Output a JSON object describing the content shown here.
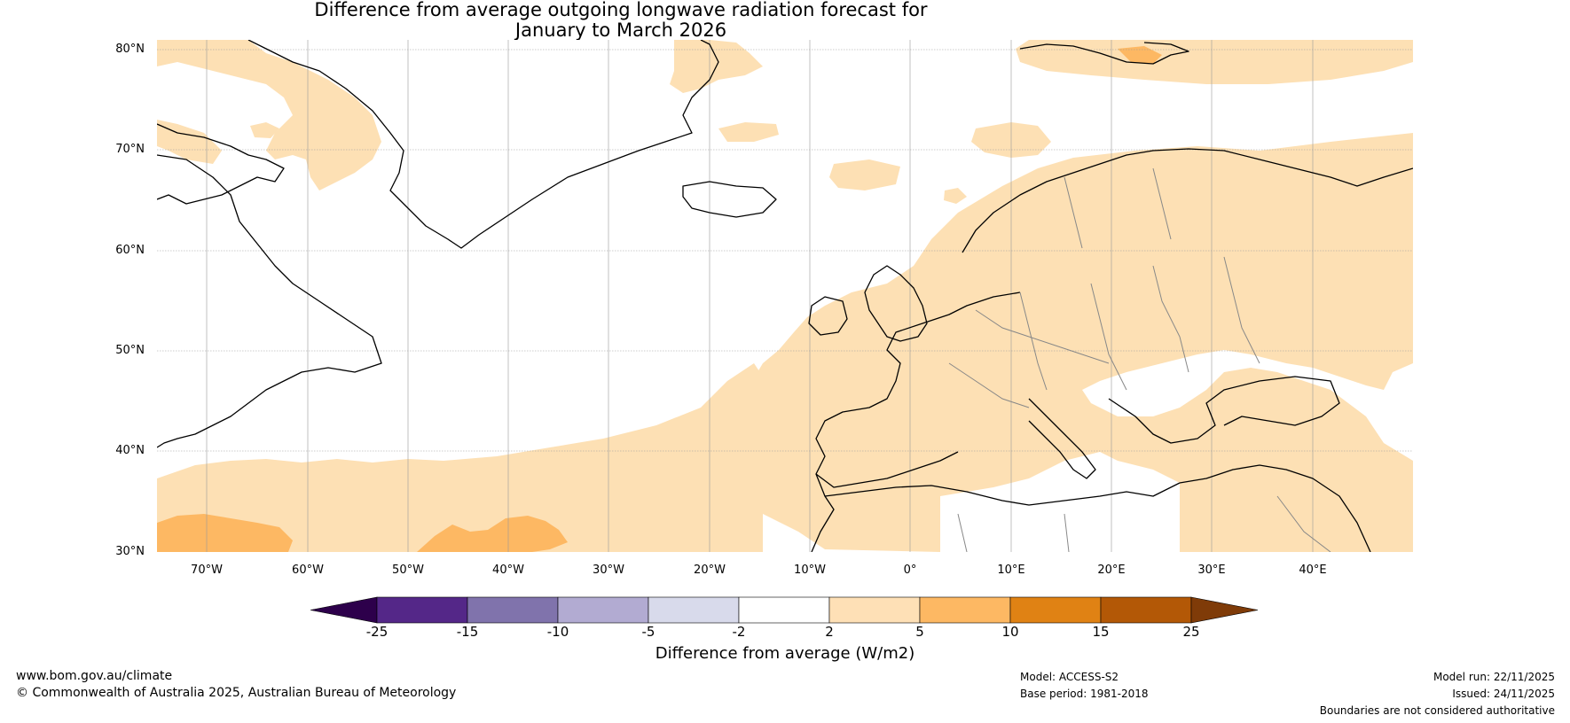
{
  "title": {
    "line1": "Difference from average outgoing longwave radiation forecast for",
    "line2": "January to March 2026"
  },
  "map": {
    "lat_labels": [
      "80°N",
      "70°N",
      "60°N",
      "50°N",
      "40°N",
      "30°N"
    ],
    "lon_labels": [
      "70°W",
      "60°W",
      "50°W",
      "40°W",
      "30°W",
      "20°W",
      "10°W",
      "0°",
      "10°E",
      "20°E",
      "30°E",
      "40°E"
    ],
    "region_extent": {
      "lon_min": -75,
      "lon_max": 50,
      "lat_min": 30,
      "lat_max": 81
    },
    "colors": {
      "ocean": "#ffffff",
      "anomaly_2_5": "#fde0b4",
      "anomaly_5_10": "#fdb863",
      "coastline": "#000000",
      "border": "#888888",
      "gridline": "#999999"
    }
  },
  "colorbar": {
    "ticks": [
      "-25",
      "-15",
      "-10",
      "-5",
      "-2",
      "2",
      "5",
      "10",
      "15",
      "25"
    ],
    "colors": [
      "#2d004b",
      "#542788",
      "#8073ac",
      "#b2abd2",
      "#d8daeb",
      "#ffffff",
      "#fee0b6",
      "#fdb863",
      "#e08214",
      "#b35806",
      "#7f3b08"
    ],
    "label": "Difference from average (W/m2)"
  },
  "footer": {
    "website": "www.bom.gov.au/climate",
    "copyright": "© Commonwealth of Australia 2025, Australian Bureau of Meteorology",
    "model": "Model: ACCESS-S2",
    "base_period": "Base period: 1981-2018",
    "model_run": "Model run: 22/11/2025",
    "issued": "Issued: 24/11/2025",
    "disclaimer": "Boundaries are not considered authoritative"
  }
}
